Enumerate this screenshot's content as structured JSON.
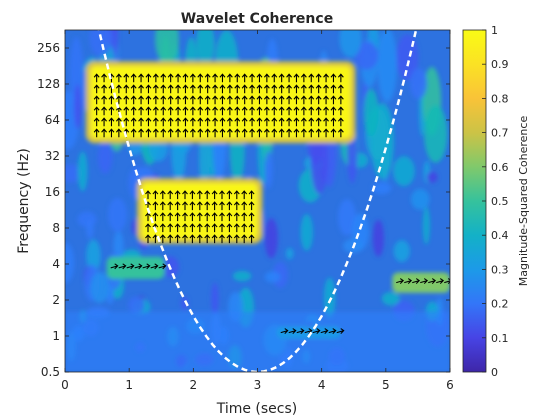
{
  "chart_data": {
    "type": "heatmap",
    "title": "Wavelet Coherence",
    "xlabel": "Time (secs)",
    "ylabel": "Frequency (Hz)",
    "xlim": [
      0,
      6
    ],
    "ylim": [
      0.5,
      362
    ],
    "y_scale": "log2",
    "x_ticks": [
      0,
      1,
      2,
      3,
      4,
      5,
      6
    ],
    "x_tick_labels": [
      "0",
      "1",
      "2",
      "3",
      "4",
      "5",
      "6"
    ],
    "y_ticks": [
      0.5,
      1,
      2,
      4,
      8,
      16,
      32,
      64,
      128,
      256
    ],
    "y_tick_labels": [
      "0.5",
      "1",
      "2",
      "4",
      "8",
      "16",
      "32",
      "64",
      "128",
      "256"
    ],
    "colorbar": {
      "label": "Magnitude-Squared Coherence",
      "range": [
        0,
        1
      ],
      "ticks": [
        0,
        0.1,
        0.2,
        0.3,
        0.4,
        0.5,
        0.6,
        0.7,
        0.8,
        0.9,
        1
      ],
      "tick_labels": [
        "0",
        "0.1",
        "0.2",
        "0.3",
        "0.4",
        "0.5",
        "0.6",
        "0.7",
        "0.8",
        "0.9",
        "1"
      ],
      "colormap": "parula"
    },
    "high_coherence_regions": [
      {
        "t_range": [
          0.4,
          4.45
        ],
        "f_range": [
          45,
          180
        ],
        "coherence": 0.98,
        "phase_arrow": "up"
      },
      {
        "t_range": [
          1.2,
          3.0
        ],
        "f_range": [
          6.5,
          19
        ],
        "coherence": 0.98,
        "phase_arrow": "up"
      }
    ],
    "moderate_coherence_regions": [
      {
        "t_range": [
          0.65,
          1.55
        ],
        "f_range": [
          3.0,
          4.6
        ],
        "coherence": 0.5
      },
      {
        "t_range": [
          5.1,
          6.0
        ],
        "f_range": [
          2.3,
          3.4
        ],
        "coherence": 0.6
      },
      {
        "t_range": [
          3.3,
          4.3
        ],
        "f_range": [
          0.95,
          1.2
        ],
        "coherence": 0.3
      }
    ],
    "cone_of_influence": {
      "style": "white dashed",
      "min_frequency_at_center": 0.5
    }
  }
}
